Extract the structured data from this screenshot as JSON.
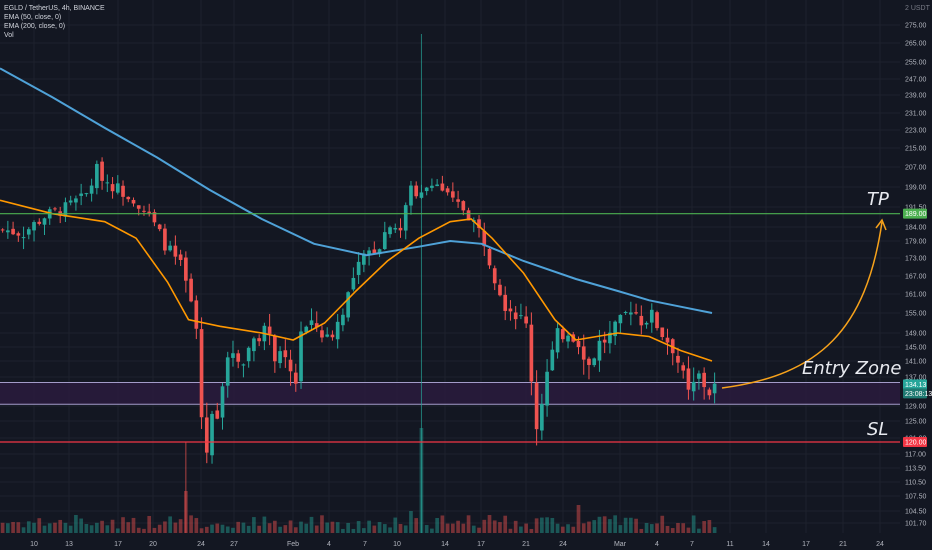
{
  "legend": {
    "symbol": "EGLD / TetherUS, 4h, BINANCE",
    "ema50": "EMA (50, close, 0)",
    "ema200": "EMA (200, close, 0)",
    "vol": "Vol"
  },
  "chart_data": {
    "type": "candlestick",
    "currency": "USDT",
    "yaxis_ticks": [
      "275.00",
      "265.00",
      "255.00",
      "247.00",
      "239.00",
      "231.00",
      "223.00",
      "215.00",
      "207.00",
      "199.00",
      "191.50",
      "184.00",
      "179.00",
      "173.00",
      "167.00",
      "161.00",
      "155.00",
      "149.00",
      "145.00",
      "141.00",
      "137.00",
      "129.00",
      "125.00",
      "121.00",
      "117.00",
      "113.50",
      "110.50",
      "107.50",
      "104.50",
      "101.70"
    ],
    "xaxis_ticks": [
      "10",
      "13",
      "17",
      "20",
      "24",
      "27",
      "Feb",
      "4",
      "7",
      "10",
      "14",
      "17",
      "21",
      "24",
      "Mar",
      "4",
      "7",
      "11",
      "14",
      "17",
      "21",
      "24"
    ],
    "price_labels": {
      "tp": "189.00",
      "current": "134.13",
      "countdown": "23:08:13",
      "sl": "120.00"
    },
    "levels": {
      "tp": 189.0,
      "entry_top": 135.5,
      "entry_bottom": 129.5,
      "sl": 120.0
    },
    "annotations": {
      "tp": "TP",
      "entry": "Entry Zone",
      "sl": "SL"
    },
    "close_path": [
      [
        0,
        183
      ],
      [
        4,
        182
      ],
      [
        8,
        188
      ],
      [
        12,
        191
      ],
      [
        16,
        196
      ],
      [
        18,
        206
      ],
      [
        20,
        201
      ],
      [
        25,
        195
      ],
      [
        28,
        188
      ],
      [
        31,
        178
      ],
      [
        34,
        170
      ],
      [
        36,
        158
      ],
      [
        37,
        150
      ],
      [
        38,
        126
      ],
      [
        39,
        118
      ],
      [
        40,
        126
      ],
      [
        41,
        128
      ],
      [
        42,
        136
      ],
      [
        44,
        144
      ],
      [
        46,
        141
      ],
      [
        48,
        148
      ],
      [
        50,
        150
      ],
      [
        52,
        143
      ],
      [
        54,
        140
      ],
      [
        56,
        136
      ],
      [
        57,
        150
      ],
      [
        60,
        151
      ],
      [
        62,
        147
      ],
      [
        64,
        152
      ],
      [
        66,
        161
      ],
      [
        68,
        170
      ],
      [
        70,
        175
      ],
      [
        72,
        178
      ],
      [
        74,
        186
      ],
      [
        76,
        183
      ],
      [
        78,
        199
      ],
      [
        80,
        196
      ],
      [
        82,
        202
      ],
      [
        84,
        198
      ],
      [
        86,
        193
      ],
      [
        88,
        191
      ],
      [
        90,
        186
      ],
      [
        92,
        179
      ],
      [
        94,
        167
      ],
      [
        96,
        158
      ],
      [
        98,
        155
      ],
      [
        100,
        151
      ],
      [
        101,
        137
      ],
      [
        102,
        124
      ],
      [
        104,
        138
      ],
      [
        106,
        148
      ],
      [
        108,
        150
      ],
      [
        110,
        147
      ],
      [
        112,
        140
      ],
      [
        114,
        146
      ],
      [
        116,
        148
      ],
      [
        118,
        152
      ],
      [
        120,
        157
      ],
      [
        122,
        153
      ],
      [
        124,
        154
      ],
      [
        126,
        149
      ],
      [
        128,
        145
      ],
      [
        129,
        141
      ],
      [
        131,
        132
      ],
      [
        133,
        137
      ],
      [
        135,
        133
      ],
      [
        136,
        134.13
      ]
    ],
    "ema50_path": [
      [
        0,
        194
      ],
      [
        10,
        189
      ],
      [
        20,
        186
      ],
      [
        26,
        180
      ],
      [
        32,
        165
      ],
      [
        36,
        153
      ],
      [
        42,
        151
      ],
      [
        50,
        149
      ],
      [
        56,
        147
      ],
      [
        62,
        152
      ],
      [
        68,
        162
      ],
      [
        74,
        172
      ],
      [
        80,
        180
      ],
      [
        86,
        186
      ],
      [
        90,
        187
      ],
      [
        94,
        180
      ],
      [
        100,
        168
      ],
      [
        106,
        153
      ],
      [
        110,
        147
      ],
      [
        114,
        148
      ],
      [
        118,
        149
      ],
      [
        124,
        148
      ],
      [
        130,
        144
      ],
      [
        136,
        141
      ]
    ],
    "ema200_path": [
      [
        0,
        252
      ],
      [
        10,
        238
      ],
      [
        20,
        224
      ],
      [
        30,
        211
      ],
      [
        40,
        198
      ],
      [
        50,
        187
      ],
      [
        60,
        178
      ],
      [
        70,
        174
      ],
      [
        80,
        177
      ],
      [
        86,
        179
      ],
      [
        92,
        178
      ],
      [
        100,
        172
      ],
      [
        110,
        166
      ],
      [
        118,
        162
      ],
      [
        124,
        159
      ],
      [
        130,
        157
      ],
      [
        136,
        155
      ]
    ],
    "volume_spikes": [
      [
        35,
        42
      ],
      [
        80,
        105
      ],
      [
        110,
        28
      ],
      [
        78,
        22
      ],
      [
        14,
        18
      ]
    ]
  },
  "colors": {
    "bg": "#131722",
    "grid": "#1e222d",
    "up": "#26a69a",
    "down": "#ef5350",
    "ema50": "#ff9800",
    "ema200": "#4fa2d8",
    "tp": "#4caf50",
    "sl": "#f23645",
    "zone_fill": "#2a1b3d",
    "zone_line": "#a39bc9",
    "arrow": "#f7a21b"
  }
}
